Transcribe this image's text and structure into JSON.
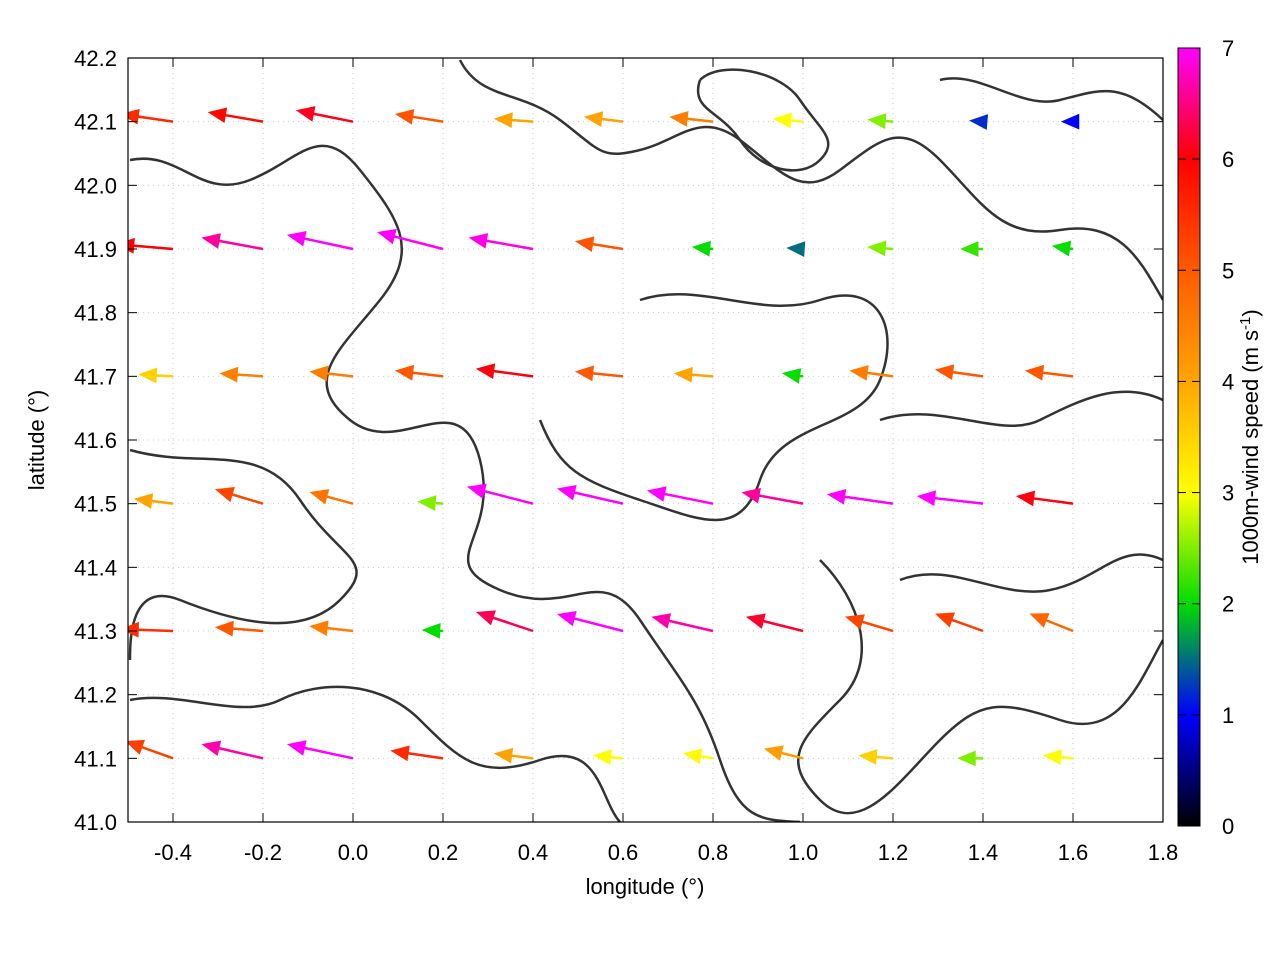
{
  "chart_data": {
    "type": "quiver",
    "xlabel": "longitude (°)",
    "ylabel": "latitude (°)",
    "xlim": [
      -0.5,
      1.8
    ],
    "ylim": [
      41.0,
      42.2
    ],
    "xticks": [
      -0.4,
      -0.2,
      {
        "value": 0,
        "label": "0.0"
      },
      0.2,
      0.4,
      0.6,
      0.8,
      {
        "value": 1,
        "label": "1.0"
      },
      1.2,
      1.4,
      1.6,
      1.8
    ],
    "yticks": [
      {
        "value": 41,
        "label": "41.0"
      },
      41.1,
      41.2,
      41.3,
      41.4,
      41.5,
      41.6,
      41.7,
      41.8,
      41.9,
      {
        "value": 42,
        "label": "42.0"
      },
      42.1,
      42.2
    ],
    "grid": true,
    "vectors": [
      {
        "x": -0.4,
        "y": 42.1,
        "u": -5.5,
        "v": 0.8
      },
      {
        "x": -0.2,
        "y": 42.1,
        "u": -5.8,
        "v": 1.0
      },
      {
        "x": 0.0,
        "y": 42.1,
        "u": -6,
        "v": 1.2
      },
      {
        "x": 0.2,
        "y": 42.1,
        "u": -5,
        "v": 0.8
      },
      {
        "x": 0.4,
        "y": 42.1,
        "u": -4,
        "v": 0.3
      },
      {
        "x": 0.6,
        "y": 42.1,
        "u": -4,
        "v": 0.5
      },
      {
        "x": 0.8,
        "y": 42.1,
        "u": -4.5,
        "v": 0.5
      },
      {
        "x": 1.0,
        "y": 42.1,
        "u": -3,
        "v": 0.3
      },
      {
        "x": 1.2,
        "y": 42.1,
        "u": -2.5,
        "v": 0.2
      },
      {
        "x": 1.4,
        "y": 42.1,
        "u": -1.2,
        "v": 0.1
      },
      {
        "x": 1.6,
        "y": 42.1,
        "u": -1,
        "v": 0
      },
      {
        "x": -0.4,
        "y": 41.9,
        "u": -6,
        "v": 0.5
      },
      {
        "x": -0.2,
        "y": 41.9,
        "u": -6.5,
        "v": 1.2
      },
      {
        "x": 0.0,
        "y": 41.9,
        "u": -7,
        "v": 1.5
      },
      {
        "x": 0.2,
        "y": 41.9,
        "u": -7,
        "v": 1.8
      },
      {
        "x": 0.4,
        "y": 41.9,
        "u": -6.8,
        "v": 1.2
      },
      {
        "x": 0.6,
        "y": 41.9,
        "u": -5,
        "v": 0.8
      },
      {
        "x": 0.8,
        "y": 41.9,
        "u": -2,
        "v": 0.2
      },
      {
        "x": 1.0,
        "y": 41.9,
        "u": -1.5,
        "v": 0.1
      },
      {
        "x": 1.2,
        "y": 41.9,
        "u": -2.5,
        "v": 0.2
      },
      {
        "x": 1.4,
        "y": 41.9,
        "u": -2.2,
        "v": 0
      },
      {
        "x": 1.6,
        "y": 41.9,
        "u": -2,
        "v": 0.3
      },
      {
        "x": -0.4,
        "y": 41.7,
        "u": -3.5,
        "v": 0.2
      },
      {
        "x": -0.2,
        "y": 41.7,
        "u": -4.5,
        "v": 0.3
      },
      {
        "x": 0.0,
        "y": 41.7,
        "u": -4.5,
        "v": 0.5
      },
      {
        "x": 0.2,
        "y": 41.7,
        "u": -5,
        "v": 0.6
      },
      {
        "x": 0.4,
        "y": 41.7,
        "u": -6,
        "v": 0.8
      },
      {
        "x": 0.6,
        "y": 41.7,
        "u": -5,
        "v": 0.5
      },
      {
        "x": 0.8,
        "y": 41.7,
        "u": -4,
        "v": 0.3
      },
      {
        "x": 1.0,
        "y": 41.7,
        "u": -2,
        "v": 0.3
      },
      {
        "x": 1.2,
        "y": 41.7,
        "u": -4.5,
        "v": 0.6
      },
      {
        "x": 1.4,
        "y": 41.7,
        "u": -5,
        "v": 0.7
      },
      {
        "x": 1.6,
        "y": 41.7,
        "u": -5,
        "v": 0.6
      },
      {
        "x": -0.4,
        "y": 41.5,
        "u": -4,
        "v": 0.5
      },
      {
        "x": -0.2,
        "y": 41.5,
        "u": -5,
        "v": 1.5
      },
      {
        "x": 0.0,
        "y": 41.5,
        "u": -4.5,
        "v": 1.2
      },
      {
        "x": 0.2,
        "y": 41.5,
        "u": -2.5,
        "v": 0.2
      },
      {
        "x": 0.4,
        "y": 41.5,
        "u": -7,
        "v": 1.8
      },
      {
        "x": 0.6,
        "y": 41.5,
        "u": -7,
        "v": 1.6
      },
      {
        "x": 0.8,
        "y": 41.5,
        "u": -7,
        "v": 1.4
      },
      {
        "x": 1.0,
        "y": 41.5,
        "u": -6.5,
        "v": 1.2
      },
      {
        "x": 1.2,
        "y": 41.5,
        "u": -7,
        "v": 1.0
      },
      {
        "x": 1.4,
        "y": 41.5,
        "u": -7,
        "v": 0.8
      },
      {
        "x": 1.6,
        "y": 41.5,
        "u": -6,
        "v": 0.8
      },
      {
        "x": -0.4,
        "y": 41.3,
        "u": -5.5,
        "v": 0.2
      },
      {
        "x": -0.2,
        "y": 41.3,
        "u": -5,
        "v": 0.4
      },
      {
        "x": 0.0,
        "y": 41.3,
        "u": -4.5,
        "v": 0.5
      },
      {
        "x": 0.2,
        "y": 41.3,
        "u": -2,
        "v": 0.1
      },
      {
        "x": 0.4,
        "y": 41.3,
        "u": -6,
        "v": 2.0
      },
      {
        "x": 0.6,
        "y": 41.3,
        "u": -7,
        "v": 1.8
      },
      {
        "x": 0.8,
        "y": 41.3,
        "u": -6.5,
        "v": 1.5
      },
      {
        "x": 1.0,
        "y": 41.3,
        "u": -6,
        "v": 1.5
      },
      {
        "x": 1.2,
        "y": 41.3,
        "u": -5,
        "v": 1.5
      },
      {
        "x": 1.4,
        "y": 41.3,
        "u": -5,
        "v": 1.8
      },
      {
        "x": 1.6,
        "y": 41.3,
        "u": -4.5,
        "v": 1.8
      },
      {
        "x": -0.4,
        "y": 41.1,
        "u": -5,
        "v": 1.8
      },
      {
        "x": -0.2,
        "y": 41.1,
        "u": -6.5,
        "v": 1.5
      },
      {
        "x": 0.0,
        "y": 41.1,
        "u": -7,
        "v": 1.5
      },
      {
        "x": 0.2,
        "y": 41.1,
        "u": -5.5,
        "v": 0.8
      },
      {
        "x": 0.4,
        "y": 41.1,
        "u": -4,
        "v": 0.5
      },
      {
        "x": 0.6,
        "y": 41.1,
        "u": -3,
        "v": 0.3
      },
      {
        "x": 0.8,
        "y": 41.1,
        "u": -3,
        "v": 0.5
      },
      {
        "x": 1.0,
        "y": 41.1,
        "u": -4,
        "v": 1.0
      },
      {
        "x": 1.2,
        "y": 41.1,
        "u": -3.5,
        "v": 0.3
      },
      {
        "x": 1.4,
        "y": 41.1,
        "u": -2.5,
        "v": 0
      },
      {
        "x": 1.6,
        "y": 41.1,
        "u": -3,
        "v": 0.3
      }
    ],
    "colorbar": {
      "label": "1000m-wind speed (m s",
      "label_sup": "-1",
      "label_end": ")",
      "lim": [
        0,
        7
      ],
      "ticks": [
        0,
        1,
        2,
        3,
        4,
        5,
        6,
        7
      ],
      "colors": [
        "#000000",
        "#0000ff",
        "#00dd00",
        "#ffff00",
        "#ffa500",
        "#ff5a00",
        "#ff0000",
        "#ff00ff"
      ]
    }
  }
}
